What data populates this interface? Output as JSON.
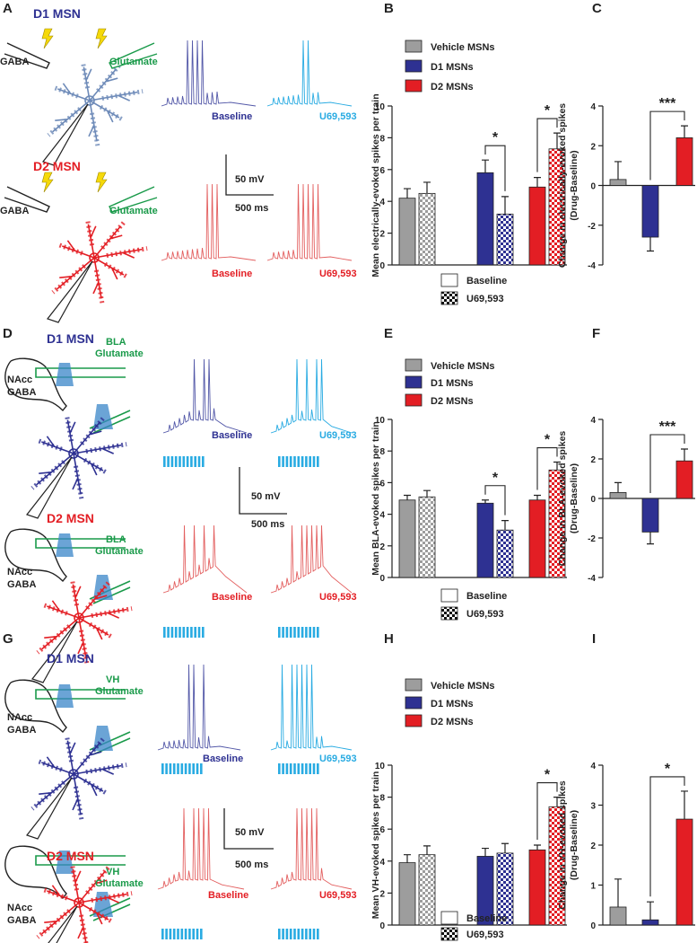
{
  "panel_letters": [
    "A",
    "B",
    "C",
    "D",
    "E",
    "F",
    "G",
    "H",
    "I"
  ],
  "diagram_texts": [
    [
      "D1 MSN",
      "GABA",
      "Glutamate",
      "Baseline",
      "U69,593",
      "50 mV",
      "500 ms",
      "D2 MSN",
      "GABA",
      "Glutamate",
      "Baseline",
      "U69,593"
    ],
    [
      "D1 MSN",
      "BLA",
      "Glutamate",
      "NAcc",
      "GABA",
      "Baseline",
      "U69,593",
      "50 mV",
      "500 ms",
      "D2 MSN",
      "BLA",
      "Glutamate",
      "NAcc",
      "GABA",
      "Baseline",
      "U69,593"
    ],
    [
      "D1 MSN",
      "VH",
      "Glutamate",
      "NAcc",
      "GABA",
      "Baseline",
      "U69,593",
      "50 mV",
      "500 ms",
      "D2 MSN",
      "VH",
      "Glutamate",
      "NAcc",
      "GABA",
      "Baseline",
      "U69,593"
    ]
  ],
  "chart_data": [
    {
      "type": "bar",
      "ylabel": "Mean electrically-evoked spikes per train",
      "categories": [
        "Vehicle MSNs",
        "D1 MSNs",
        "D2 MSNs"
      ],
      "colors": [
        "#9d9d9d",
        "#2e3192",
        "#e31e24"
      ],
      "series": [
        {
          "name": "Baseline",
          "pattern": "solid",
          "values": [
            4.2,
            5.8,
            4.9
          ],
          "errors": [
            0.6,
            0.8,
            0.6
          ]
        },
        {
          "name": "U69,593",
          "pattern": "checker",
          "values": [
            4.5,
            3.2,
            7.3
          ],
          "errors": [
            0.7,
            1.1,
            1.0
          ]
        }
      ],
      "significance": [
        null,
        "*",
        "*"
      ],
      "ylim": [
        0,
        10
      ],
      "yticks": [
        0,
        2,
        4,
        6,
        8,
        10
      ]
    },
    {
      "type": "bar",
      "ylabel": [
        "Change in electrically-evoked spikes",
        "(Drug-Baseline)"
      ],
      "categories": [
        null,
        null,
        null
      ],
      "colors": [
        "#9d9d9d",
        "#2e3192",
        "#e31e24"
      ],
      "values": [
        0.3,
        -2.6,
        2.4
      ],
      "errors": [
        0.9,
        0.7,
        0.6
      ],
      "significance": [
        null,
        null,
        "***"
      ],
      "ylim": [
        -4,
        4
      ],
      "yticks": [
        -4,
        -2,
        0,
        2,
        4
      ]
    },
    {
      "type": "bar",
      "ylabel": "Mean BLA-evoked spikes per train",
      "categories": [
        "Vehicle MSNs",
        "D1 MSNs",
        "D2 MSNs"
      ],
      "colors": [
        "#9d9d9d",
        "#2e3192",
        "#e31e24"
      ],
      "series": [
        {
          "name": "Baseline",
          "pattern": "solid",
          "values": [
            4.9,
            4.7,
            4.9
          ],
          "errors": [
            0.3,
            0.2,
            0.3
          ]
        },
        {
          "name": "U69,593",
          "pattern": "checker",
          "values": [
            5.1,
            3.0,
            6.8
          ],
          "errors": [
            0.4,
            0.6,
            0.5
          ]
        }
      ],
      "significance": [
        null,
        "*",
        "*"
      ],
      "ylim": [
        0,
        10
      ],
      "yticks": [
        0,
        2,
        4,
        6,
        8,
        10
      ]
    },
    {
      "type": "bar",
      "ylabel": [
        "Change in BLA-evoked spikes",
        "(Drug-Baseline)"
      ],
      "categories": [
        null,
        null,
        null
      ],
      "colors": [
        "#9d9d9d",
        "#2e3192",
        "#e31e24"
      ],
      "values": [
        0.3,
        -1.7,
        1.9
      ],
      "errors": [
        0.5,
        0.6,
        0.6
      ],
      "significance": [
        null,
        null,
        "***"
      ],
      "ylim": [
        -4,
        4
      ],
      "yticks": [
        -4,
        -2,
        0,
        2,
        4
      ]
    },
    {
      "type": "bar",
      "ylabel": "Mean VH-evoked spikes per train",
      "categories": [
        "Vehicle MSNs",
        "D1 MSNs",
        "D2 MSNs"
      ],
      "colors": [
        "#9d9d9d",
        "#2e3192",
        "#e31e24"
      ],
      "series": [
        {
          "name": "Baseline",
          "pattern": "solid",
          "values": [
            3.9,
            4.3,
            4.7
          ],
          "errors": [
            0.5,
            0.5,
            0.3
          ]
        },
        {
          "name": "U69,593",
          "pattern": "checker",
          "values": [
            4.4,
            4.5,
            7.4
          ],
          "errors": [
            0.55,
            0.6,
            0.6
          ]
        }
      ],
      "significance": [
        null,
        null,
        "*"
      ],
      "ylim": [
        0,
        10
      ],
      "yticks": [
        0,
        2,
        4,
        6,
        8,
        10
      ]
    },
    {
      "type": "bar",
      "ylabel": [
        "Change in VH-evoked spikes",
        "(Drug-Baseline)"
      ],
      "categories": [
        null,
        null,
        null
      ],
      "colors": [
        "#9d9d9d",
        "#2e3192",
        "#e31e24"
      ],
      "values": [
        0.45,
        0.13,
        2.65
      ],
      "errors": [
        0.7,
        0.45,
        0.7
      ],
      "significance": [
        null,
        null,
        "*"
      ],
      "ylim": [
        0,
        4
      ],
      "yticks": [
        0,
        1,
        2,
        3,
        4
      ]
    }
  ]
}
